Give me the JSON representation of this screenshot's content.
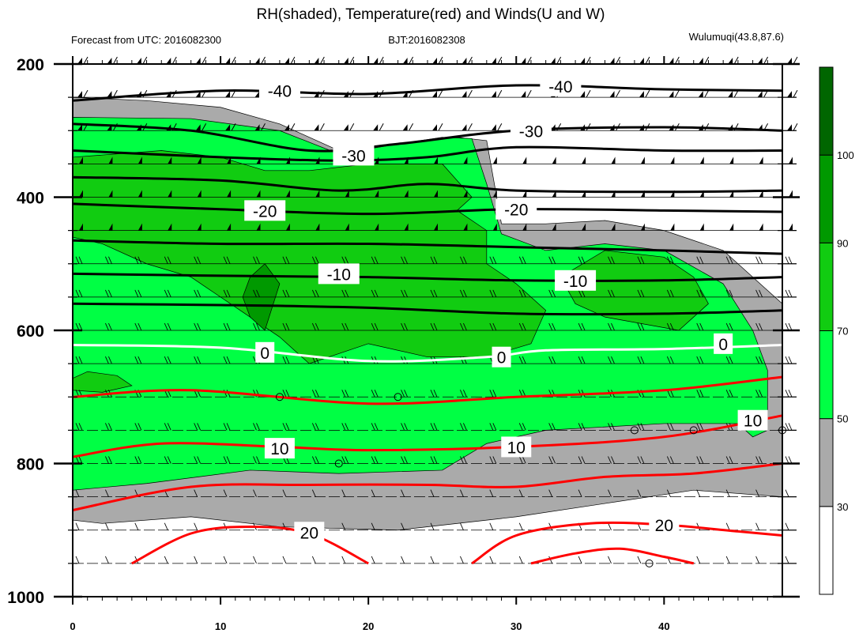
{
  "chart_data": {
    "type": "heatmap",
    "title": "RH(shaded), Temperature(red) and Winds(U and W)",
    "subtitle_left": "Forecast from UTC: 2016082300",
    "subtitle_center": "BJT:2016082308",
    "subtitle_right": "Wulumuqi(43.8,87.6)",
    "xlim": [
      0,
      48
    ],
    "ylim": [
      1000,
      200
    ],
    "y_reversed": true,
    "grid": false,
    "x_ticks": [
      0,
      10,
      20,
      30,
      40
    ],
    "y_ticks": [
      200,
      400,
      600,
      800,
      1000
    ],
    "levels": [
      200,
      250,
      300,
      350,
      400,
      450,
      500,
      550,
      600,
      650,
      700,
      750,
      800,
      850,
      900,
      950
    ],
    "colorbar": {
      "placement": "right",
      "ticks": [
        30,
        50,
        70,
        90,
        100
      ],
      "bins": [
        {
          "from": 0,
          "to": 30,
          "color": "#ffffff"
        },
        {
          "from": 30,
          "to": 50,
          "color": "#aaaaaa"
        },
        {
          "from": 50,
          "to": 70,
          "color": "#00ff44"
        },
        {
          "from": 70,
          "to": 90,
          "color": "#11cc11"
        },
        {
          "from": 90,
          "to": 100,
          "color": "#009900"
        },
        {
          "from": 100,
          "to": 110,
          "color": "#006600"
        }
      ]
    },
    "rh_regions": [
      {
        "bin": 30,
        "points": [
          [
            0,
            250
          ],
          [
            5,
            255
          ],
          [
            10,
            265
          ],
          [
            14,
            290
          ],
          [
            18,
            330
          ],
          [
            22,
            320
          ],
          [
            26,
            310
          ],
          [
            28,
            315
          ],
          [
            29,
            440
          ],
          [
            32,
            440
          ],
          [
            36,
            435
          ],
          [
            40,
            450
          ],
          [
            44,
            480
          ],
          [
            47,
            540
          ],
          [
            48,
            560
          ],
          [
            48,
            850
          ],
          [
            42,
            840
          ],
          [
            36,
            860
          ],
          [
            30,
            880
          ],
          [
            22,
            900
          ],
          [
            14,
            895
          ],
          [
            8,
            880
          ],
          [
            2,
            890
          ],
          [
            0,
            885
          ]
        ]
      },
      {
        "bin": 50,
        "points": [
          [
            0,
            280
          ],
          [
            8,
            282
          ],
          [
            14,
            300
          ],
          [
            18,
            335
          ],
          [
            22,
            320
          ],
          [
            25,
            310
          ],
          [
            27,
            312
          ],
          [
            28,
            380
          ],
          [
            29,
            455
          ],
          [
            32,
            480
          ],
          [
            36,
            470
          ],
          [
            40,
            480
          ],
          [
            44,
            530
          ],
          [
            46,
            600
          ],
          [
            47,
            660
          ],
          [
            47,
            750
          ],
          [
            46,
            760
          ],
          [
            45,
            740
          ],
          [
            40,
            740
          ],
          [
            32,
            750
          ],
          [
            28,
            770
          ],
          [
            25,
            810
          ],
          [
            18,
            815
          ],
          [
            12,
            810
          ],
          [
            5,
            830
          ],
          [
            0,
            840
          ]
        ]
      },
      {
        "bin": 70,
        "points": [
          [
            0,
            340
          ],
          [
            6,
            330
          ],
          [
            10,
            340
          ],
          [
            13,
            360
          ],
          [
            16,
            360
          ],
          [
            20,
            350
          ],
          [
            25,
            350
          ],
          [
            27,
            400
          ],
          [
            26,
            420
          ],
          [
            28,
            450
          ],
          [
            28,
            500
          ],
          [
            30,
            530
          ],
          [
            32,
            570
          ],
          [
            31,
            620
          ],
          [
            28,
            640
          ],
          [
            24,
            640
          ],
          [
            20,
            620
          ],
          [
            16,
            650
          ],
          [
            14,
            610
          ],
          [
            12,
            580
          ],
          [
            10,
            550
          ],
          [
            8,
            520
          ],
          [
            5,
            500
          ],
          [
            2,
            470
          ],
          [
            0,
            460
          ]
        ]
      },
      {
        "bin": 70,
        "points": [
          [
            33,
            520
          ],
          [
            36,
            480
          ],
          [
            40,
            490
          ],
          [
            42,
            520
          ],
          [
            43,
            560
          ],
          [
            41,
            600
          ],
          [
            36,
            580
          ],
          [
            34,
            560
          ]
        ]
      },
      {
        "bin": 70,
        "points": [
          [
            0,
            672
          ],
          [
            1,
            662
          ],
          [
            3,
            668
          ],
          [
            4,
            683
          ],
          [
            2,
            693
          ],
          [
            0,
            690
          ]
        ]
      },
      {
        "bin": 90,
        "points": [
          [
            12,
            520
          ],
          [
            13,
            500
          ],
          [
            14,
            530
          ],
          [
            13,
            600
          ],
          [
            12,
            580
          ],
          [
            11.5,
            550
          ]
        ]
      }
    ],
    "series": [
      {
        "name": "-40",
        "values": [
          [
            0,
            255
          ],
          [
            10,
            240
          ],
          [
            20,
            245
          ],
          [
            30,
            232
          ],
          [
            40,
            238
          ],
          [
            48,
            240
          ]
        ]
      },
      {
        "name": "-30",
        "values": [
          [
            0,
            290
          ],
          [
            8,
            300
          ],
          [
            16,
            330
          ],
          [
            22,
            320
          ],
          [
            30,
            300
          ],
          [
            40,
            295
          ],
          [
            48,
            300
          ]
        ]
      },
      {
        "name": "-30",
        "values": [
          [
            0,
            330
          ],
          [
            10,
            340
          ],
          [
            18,
            345
          ],
          [
            24,
            340
          ],
          [
            30,
            325
          ],
          [
            40,
            330
          ],
          [
            48,
            330
          ]
        ]
      },
      {
        "name": "-20",
        "values": [
          [
            0,
            370
          ],
          [
            10,
            375
          ],
          [
            18,
            390
          ],
          [
            24,
            380
          ],
          [
            30,
            390
          ],
          [
            40,
            392
          ],
          [
            48,
            390
          ]
        ]
      },
      {
        "name": "-20",
        "values": [
          [
            0,
            410
          ],
          [
            10,
            418
          ],
          [
            20,
            425
          ],
          [
            30,
            418
          ],
          [
            40,
            420
          ],
          [
            48,
            422
          ]
        ]
      },
      {
        "name": "-10",
        "values": [
          [
            0,
            465
          ],
          [
            10,
            470
          ],
          [
            20,
            470
          ],
          [
            30,
            475
          ],
          [
            40,
            480
          ],
          [
            48,
            485
          ]
        ]
      },
      {
        "name": "-10",
        "values": [
          [
            0,
            515
          ],
          [
            10,
            518
          ],
          [
            20,
            520
          ],
          [
            30,
            525
          ],
          [
            40,
            525
          ],
          [
            48,
            520
          ]
        ]
      },
      {
        "name": "-10",
        "values": [
          [
            0,
            560
          ],
          [
            10,
            562
          ],
          [
            20,
            566
          ],
          [
            30,
            575
          ],
          [
            40,
            575
          ],
          [
            48,
            570
          ]
        ]
      },
      {
        "name": "0",
        "values": [
          [
            0,
            622
          ],
          [
            10,
            626
          ],
          [
            20,
            646
          ],
          [
            28,
            640
          ],
          [
            32,
            630
          ],
          [
            40,
            628
          ],
          [
            48,
            622
          ]
        ]
      },
      {
        "name": "",
        "values": [
          [
            0,
            700
          ],
          [
            8,
            690
          ],
          [
            20,
            710
          ],
          [
            30,
            700
          ],
          [
            40,
            690
          ],
          [
            48,
            670
          ]
        ]
      },
      {
        "name": "10",
        "values": [
          [
            0,
            790
          ],
          [
            6,
            770
          ],
          [
            14,
            775
          ],
          [
            20,
            780
          ],
          [
            30,
            775
          ],
          [
            40,
            760
          ],
          [
            48,
            728
          ]
        ]
      },
      {
        "name": "",
        "values": [
          [
            0,
            870
          ],
          [
            8,
            835
          ],
          [
            16,
            832
          ],
          [
            24,
            832
          ],
          [
            30,
            835
          ],
          [
            36,
            820
          ],
          [
            42,
            815
          ],
          [
            48,
            800
          ]
        ]
      },
      {
        "name": "20",
        "values": [
          [
            4,
            950
          ],
          [
            8,
            905
          ],
          [
            12,
            895
          ],
          [
            16,
            905
          ],
          [
            20,
            950
          ]
        ]
      },
      {
        "name": "20",
        "values": [
          [
            27,
            950
          ],
          [
            30,
            908
          ],
          [
            35,
            890
          ],
          [
            40,
            892
          ],
          [
            45,
            902
          ],
          [
            48,
            908
          ]
        ]
      },
      {
        "name": "",
        "values": [
          [
            31,
            950
          ],
          [
            34,
            935
          ],
          [
            37,
            928
          ],
          [
            40,
            940
          ],
          [
            42,
            950
          ]
        ]
      }
    ],
    "temperature_labels": [
      {
        "text": "-40",
        "x": 14,
        "y": 240
      },
      {
        "text": "-40",
        "x": 33,
        "y": 233
      },
      {
        "text": "-30",
        "x": 19,
        "y": 337
      },
      {
        "text": "-30",
        "x": 31,
        "y": 300
      },
      {
        "text": "-20",
        "x": 13,
        "y": 420
      },
      {
        "text": "-20",
        "x": 30,
        "y": 418
      },
      {
        "text": "-10",
        "x": 18,
        "y": 515
      },
      {
        "text": "-10",
        "x": 34,
        "y": 525
      },
      {
        "text": "0",
        "x": 13,
        "y": 633
      },
      {
        "text": "0",
        "x": 29,
        "y": 640
      },
      {
        "text": "0",
        "x": 44,
        "y": 620
      },
      {
        "text": "10",
        "x": 14,
        "y": 777
      },
      {
        "text": "10",
        "x": 30,
        "y": 775
      },
      {
        "text": "10",
        "x": 46,
        "y": 735
      },
      {
        "text": "20",
        "x": 16,
        "y": 903
      },
      {
        "text": "20",
        "x": 40,
        "y": 892
      }
    ],
    "calm_markers": [
      [
        14,
        700
      ],
      [
        22,
        700
      ],
      [
        18,
        800
      ],
      [
        38,
        750
      ],
      [
        42,
        750
      ],
      [
        48,
        750
      ],
      [
        39,
        950
      ]
    ],
    "colors": {
      "temperature_cold": "#000000",
      "temperature_zero": "#ffffff",
      "temperature_warm": "#ff0000"
    }
  }
}
